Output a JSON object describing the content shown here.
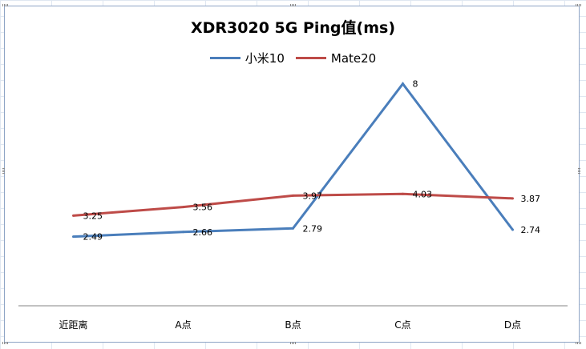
{
  "chart_data": {
    "type": "line",
    "title": "XDR3020 5G Ping值(ms)",
    "categories": [
      "近距离",
      "A点",
      "B点",
      "C点",
      "D点"
    ],
    "series": [
      {
        "name": "小米10",
        "color": "#4a7ebb",
        "values": [
          2.49,
          2.66,
          2.79,
          8,
          2.74
        ],
        "labels": [
          "2.49",
          "2.66",
          "2.79",
          "8",
          "2.74"
        ]
      },
      {
        "name": "Mate20",
        "color": "#be4b48",
        "values": [
          3.25,
          3.56,
          3.97,
          4.03,
          3.87
        ],
        "labels": [
          "3.25",
          "3.56",
          "3.97",
          "4.03",
          "3.87"
        ]
      }
    ],
    "ylim": [
      0,
      9
    ],
    "grid": false,
    "legend_position": "top"
  }
}
